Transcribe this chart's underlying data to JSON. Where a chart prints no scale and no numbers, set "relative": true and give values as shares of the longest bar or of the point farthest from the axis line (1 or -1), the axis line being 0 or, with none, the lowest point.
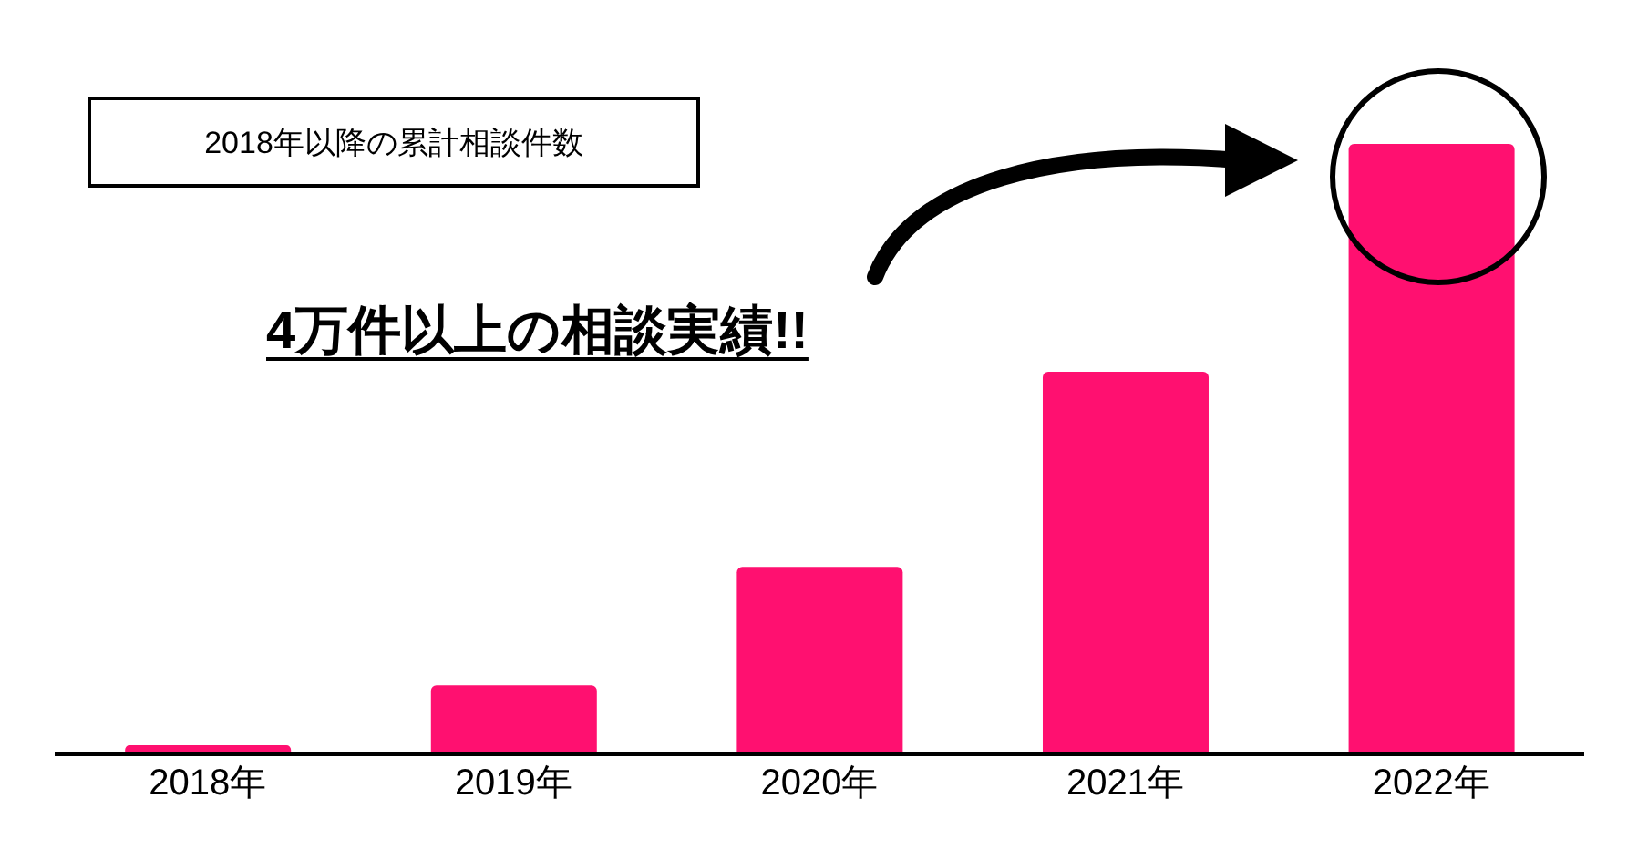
{
  "chart_data": {
    "type": "bar",
    "title": "2018年以降の累計相談件数",
    "categories": [
      "2018年",
      "2019年",
      "2020年",
      "2021年",
      "2022年"
    ],
    "values": [
      0.015,
      0.113,
      0.307,
      0.627,
      1
    ],
    "color": "#ff1070",
    "relative": true,
    "annotations": [
      "4万件以上の相談実績!!"
    ]
  }
}
